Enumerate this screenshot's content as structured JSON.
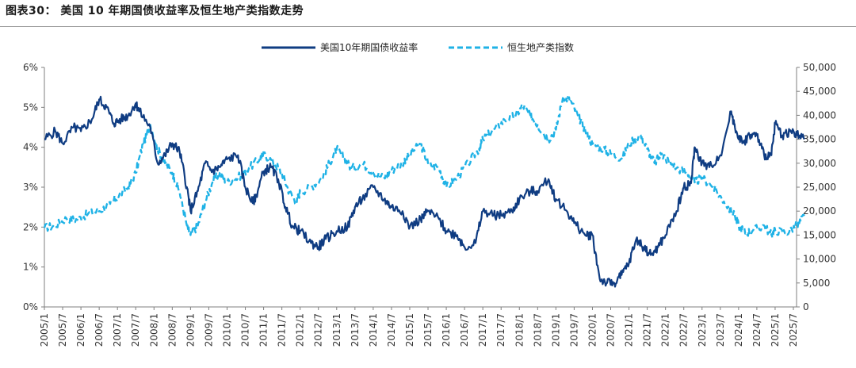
{
  "title": "图表30： 美国 10 年期国债收益率及恒生地产类指数走势",
  "colors": {
    "yield": "#0f3c82",
    "index": "#1fb2e6",
    "axis": "#7f7f7f",
    "title_rule": "#9a9a9a"
  },
  "chart_data": {
    "type": "line",
    "title": "图表30： 美国 10 年期国债收益率及恒生地产类指数走势",
    "legend_position": "top-center",
    "x_ticks": [
      "2005/1",
      "2005/7",
      "2006/1",
      "2006/7",
      "2007/1",
      "2007/7",
      "2008/1",
      "2008/7",
      "2009/1",
      "2009/7",
      "2010/1",
      "2010/7",
      "2011/1",
      "2011/7",
      "2012/1",
      "2012/7",
      "2013/1",
      "2013/7",
      "2014/1",
      "2014/7",
      "2015/1",
      "2015/7",
      "2016/1",
      "2016/7",
      "2017/1",
      "2017/7",
      "2018/1",
      "2018/7",
      "2019/1",
      "2019/7",
      "2020/1",
      "2020/7",
      "2021/1",
      "2021/7",
      "2022/1",
      "2022/7",
      "2023/1",
      "2023/7",
      "2024/1",
      "2024/7",
      "2025/1",
      "2025/7"
    ],
    "y_left": {
      "label": "",
      "range": [
        0,
        6
      ],
      "ticks": [
        "0%",
        "1%",
        "2%",
        "3%",
        "4%",
        "5%",
        "6%"
      ]
    },
    "y_right": {
      "label": "",
      "range": [
        0,
        50000
      ],
      "ticks": [
        "0",
        "5,000",
        "10,000",
        "15,000",
        "20,000",
        "25,000",
        "30,000",
        "35,000",
        "40,000",
        "45,000",
        "50,000"
      ]
    },
    "series": [
      {
        "name": "美国10年期国债收益率",
        "axis": "left",
        "style": "solid",
        "t": [
          2005.0,
          2005.3,
          2005.5,
          2005.8,
          2006.0,
          2006.3,
          2006.5,
          2006.7,
          2006.9,
          2007.1,
          2007.3,
          2007.5,
          2007.6,
          2007.9,
          2008.1,
          2008.3,
          2008.5,
          2008.7,
          2008.9,
          2009.0,
          2009.2,
          2009.4,
          2009.6,
          2009.8,
          2010.0,
          2010.3,
          2010.5,
          2010.7,
          2010.8,
          2011.0,
          2011.2,
          2011.4,
          2011.6,
          2011.8,
          2012.0,
          2012.3,
          2012.5,
          2012.7,
          2013.0,
          2013.3,
          2013.5,
          2013.7,
          2014.0,
          2014.3,
          2014.5,
          2014.8,
          2015.0,
          2015.3,
          2015.5,
          2015.8,
          2016.0,
          2016.3,
          2016.5,
          2016.8,
          2017.0,
          2017.3,
          2017.5,
          2017.8,
          2018.0,
          2018.3,
          2018.5,
          2018.8,
          2019.0,
          2019.3,
          2019.5,
          2019.8,
          2020.0,
          2020.2,
          2020.4,
          2020.6,
          2020.8,
          2021.0,
          2021.2,
          2021.4,
          2021.6,
          2021.8,
          2022.0,
          2022.3,
          2022.5,
          2022.7,
          2022.8,
          2023.0,
          2023.2,
          2023.5,
          2023.8,
          2023.9,
          2024.1,
          2024.3,
          2024.5,
          2024.7,
          2024.9,
          2025.0,
          2025.2,
          2025.4,
          2025.6,
          2025.8
        ],
        "values": [
          4.2,
          4.4,
          4.1,
          4.5,
          4.4,
          4.7,
          5.2,
          5.0,
          4.6,
          4.7,
          4.8,
          5.1,
          4.9,
          4.5,
          3.6,
          3.8,
          4.1,
          3.9,
          3.0,
          2.4,
          2.9,
          3.6,
          3.4,
          3.5,
          3.7,
          3.8,
          3.0,
          2.6,
          2.8,
          3.4,
          3.5,
          3.2,
          2.5,
          2.0,
          1.9,
          1.6,
          1.5,
          1.7,
          1.9,
          2.0,
          2.5,
          2.7,
          3.0,
          2.7,
          2.5,
          2.4,
          2.0,
          2.2,
          2.4,
          2.2,
          1.9,
          1.8,
          1.5,
          1.6,
          2.4,
          2.3,
          2.3,
          2.4,
          2.7,
          2.9,
          2.9,
          3.2,
          2.7,
          2.4,
          2.1,
          1.8,
          1.8,
          0.7,
          0.6,
          0.6,
          0.8,
          1.1,
          1.7,
          1.5,
          1.3,
          1.5,
          1.8,
          2.4,
          3.0,
          3.1,
          4.0,
          3.6,
          3.5,
          3.8,
          4.9,
          4.5,
          4.1,
          4.3,
          4.3,
          3.8,
          3.8,
          4.6,
          4.3,
          4.4,
          4.3,
          4.2
        ]
      },
      {
        "name": "恒生地产类指数",
        "axis": "right",
        "style": "dashed",
        "t": [
          2005.0,
          2005.3,
          2005.6,
          2005.9,
          2006.2,
          2006.5,
          2006.8,
          2007.0,
          2007.3,
          2007.5,
          2007.7,
          2007.9,
          2008.1,
          2008.3,
          2008.5,
          2008.7,
          2008.9,
          2009.0,
          2009.2,
          2009.4,
          2009.6,
          2009.8,
          2010.0,
          2010.3,
          2010.6,
          2010.9,
          2011.0,
          2011.3,
          2011.5,
          2011.7,
          2011.9,
          2012.0,
          2012.3,
          2012.6,
          2012.8,
          2013.0,
          2013.2,
          2013.4,
          2013.7,
          2014.0,
          2014.3,
          2014.5,
          2014.8,
          2015.0,
          2015.3,
          2015.5,
          2015.8,
          2016.0,
          2016.3,
          2016.6,
          2016.9,
          2017.0,
          2017.3,
          2017.6,
          2017.9,
          2018.1,
          2018.3,
          2018.5,
          2018.8,
          2019.0,
          2019.2,
          2019.4,
          2019.6,
          2019.8,
          2020.0,
          2020.3,
          2020.5,
          2020.8,
          2021.0,
          2021.3,
          2021.5,
          2021.7,
          2021.9,
          2022.0,
          2022.3,
          2022.6,
          2022.8,
          2023.0,
          2023.3,
          2023.6,
          2023.9,
          2024.0,
          2024.2,
          2024.4,
          2024.7,
          2024.9,
          2025.0,
          2025.3,
          2025.6,
          2025.8
        ],
        "values": [
          16500,
          17000,
          18500,
          18200,
          19500,
          20000,
          21500,
          23000,
          25000,
          28000,
          34000,
          38000,
          33000,
          30000,
          28000,
          24000,
          17000,
          15000,
          17000,
          22000,
          26000,
          28000,
          26000,
          27000,
          29000,
          31000,
          32000,
          30000,
          28000,
          24000,
          22000,
          24000,
          25000,
          27000,
          30000,
          33000,
          31000,
          29000,
          30000,
          28000,
          27000,
          28500,
          30000,
          32000,
          34000,
          30000,
          29000,
          25000,
          27000,
          30000,
          33000,
          35000,
          37000,
          39000,
          40000,
          42000,
          40000,
          38000,
          35000,
          37000,
          44000,
          43000,
          40000,
          37000,
          34000,
          33000,
          32000,
          31000,
          34000,
          36000,
          33000,
          30000,
          32000,
          31000,
          29000,
          28000,
          26000,
          27000,
          25000,
          22000,
          19000,
          17000,
          15500,
          16000,
          17000,
          15000,
          16000,
          15500,
          17000,
          19000
        ]
      }
    ]
  }
}
